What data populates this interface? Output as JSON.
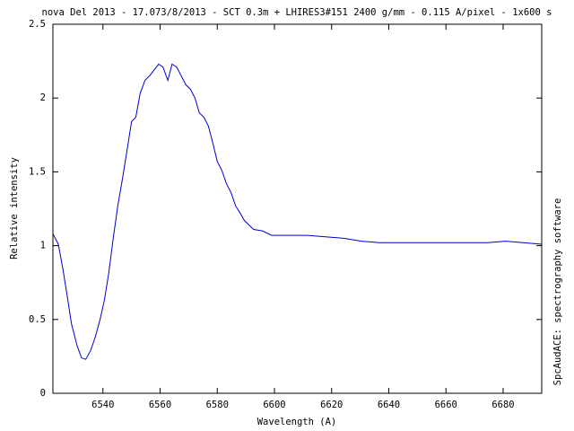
{
  "chart_data": {
    "type": "line",
    "title": "nova Del 2013 - 17.073/8/2013 - SCT 0.3m + LHIRES3#151 2400 g/mm - 0.115 A/pixel - 1x600 s",
    "x_label": "Wavelength (A)",
    "y_label": "Relative intensity",
    "annotation": "SpcAudACE: spectrography software",
    "color": "#0000cc",
    "x": [
      6522.5,
      6524.4,
      6526,
      6527.5,
      6529,
      6531,
      6532.5,
      6534,
      6535.7,
      6537.3,
      6539,
      6540.5,
      6542,
      6543.6,
      6545.2,
      6546.8,
      6548.3,
      6550,
      6551.5,
      6553,
      6554.7,
      6556.3,
      6557.9,
      6559.5,
      6561,
      6562.7,
      6564.2,
      6565.8,
      6567.4,
      6569,
      6570.6,
      6572.2,
      6573.7,
      6575.3,
      6576.9,
      6578.5,
      6580,
      6581.6,
      6583.2,
      6584.8,
      6586.4,
      6588,
      6589.5,
      6592.7,
      6595.8,
      6599,
      6605.3,
      6611.6,
      6617.9,
      6624.2,
      6630.5,
      6636.8,
      6643.1,
      6649.4,
      6655.7,
      6662,
      6668.3,
      6674.5,
      6680.8,
      6687.1,
      6693.5
    ],
    "values": [
      1.08,
      1.01,
      0.84,
      0.66,
      0.47,
      0.32,
      0.24,
      0.23,
      0.29,
      0.38,
      0.5,
      0.63,
      0.81,
      1.05,
      1.27,
      1.45,
      1.63,
      1.84,
      1.87,
      2.03,
      2.12,
      2.15,
      2.19,
      2.23,
      2.21,
      2.12,
      2.23,
      2.21,
      2.15,
      2.09,
      2.06,
      2.0,
      1.9,
      1.87,
      1.81,
      1.69,
      1.57,
      1.51,
      1.42,
      1.36,
      1.27,
      1.22,
      1.17,
      1.11,
      1.1,
      1.07,
      1.07,
      1.07,
      1.06,
      1.05,
      1.03,
      1.02,
      1.02,
      1.02,
      1.02,
      1.02,
      1.02,
      1.02,
      1.03,
      1.02,
      1.01
    ],
    "xlim": [
      6522.5,
      6693.5
    ],
    "ylim": [
      0,
      2.5
    ],
    "xticks": [
      6540,
      6560,
      6580,
      6600,
      6620,
      6640,
      6660,
      6680
    ],
    "yticks": [
      0,
      0.5,
      1,
      1.5,
      2,
      2.5
    ]
  }
}
